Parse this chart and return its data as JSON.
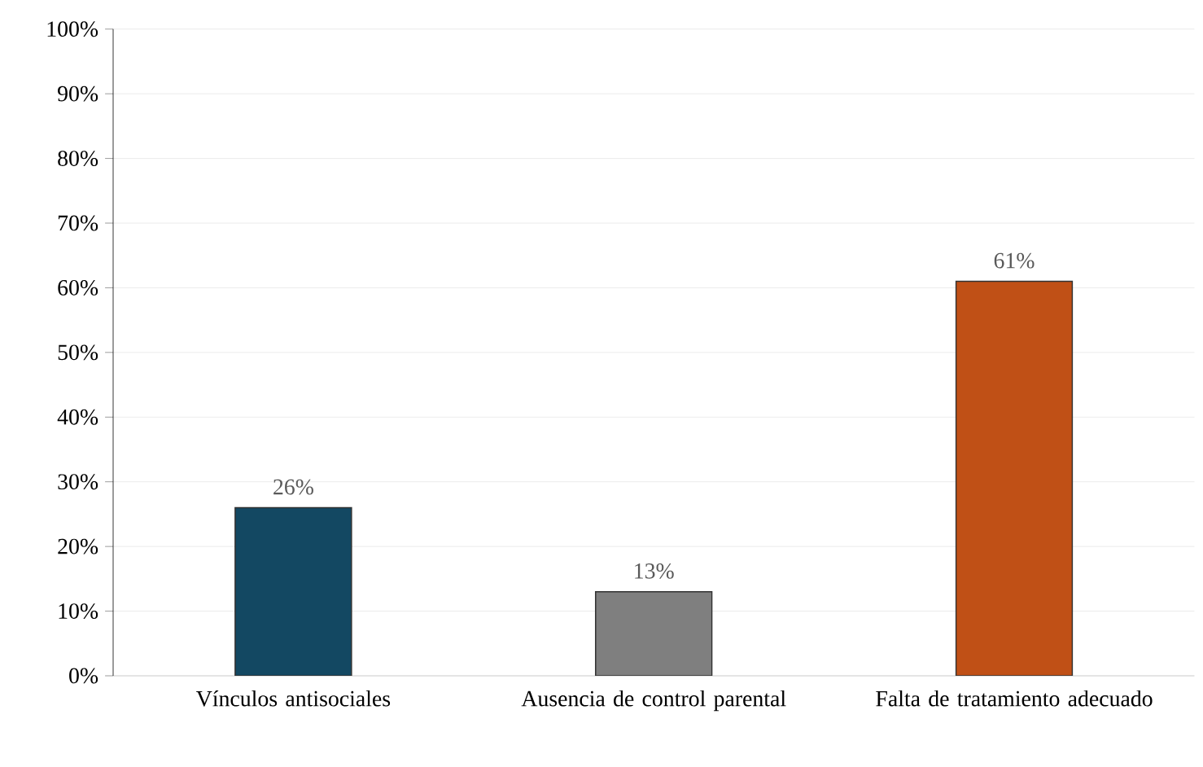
{
  "chart_data": {
    "type": "bar",
    "categories": [
      "Vínculos antisociales",
      "Ausencia de control parental",
      "Falta de tratamiento adecuado"
    ],
    "values": [
      26,
      13,
      61
    ],
    "colors": [
      "#134862",
      "#7f7f7f",
      "#c05016"
    ],
    "value_labels": [
      "26%",
      "13%",
      "61%"
    ],
    "ylim": [
      0,
      100
    ],
    "yticks": [
      {
        "value": 0,
        "label": "0%"
      },
      {
        "value": 10,
        "label": "10%"
      },
      {
        "value": 20,
        "label": "20%"
      },
      {
        "value": 30,
        "label": "30%"
      },
      {
        "value": 40,
        "label": "40%"
      },
      {
        "value": 50,
        "label": "50%"
      },
      {
        "value": 60,
        "label": "60%"
      },
      {
        "value": 70,
        "label": "70%"
      },
      {
        "value": 80,
        "label": "80%"
      },
      {
        "value": 90,
        "label": "90%"
      },
      {
        "value": 100,
        "label": "100%"
      }
    ],
    "grid": "y"
  }
}
